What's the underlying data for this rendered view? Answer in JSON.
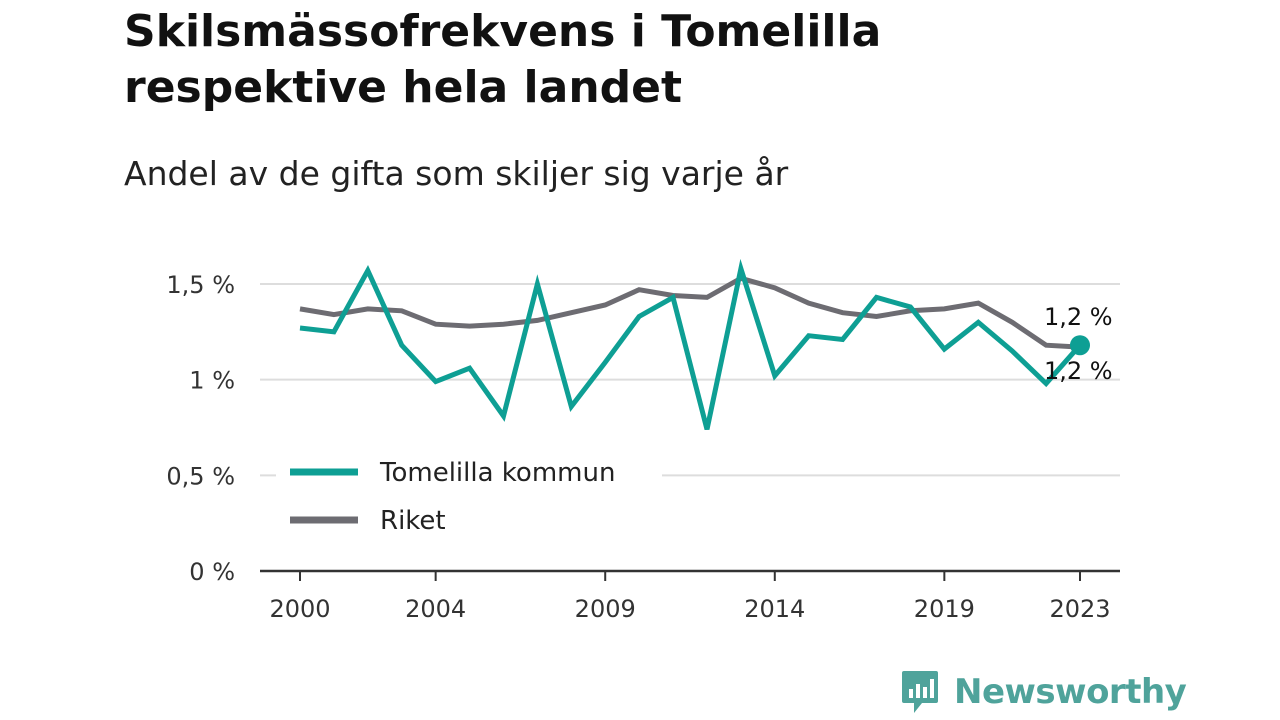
{
  "title": "Skilsmässofrekvens i Tomelilla respektive hela landet",
  "subtitle": "Andel av de gifta som skiljer sig varje år",
  "brand": "Newsworthy",
  "brand_icon": "bar-chart-speech-bubble-icon",
  "colors": {
    "tomelilla": "#0e9f94",
    "riket": "#6d6c72",
    "grid": "#dddddd",
    "axis": "#333333",
    "brand": "#4fa39b"
  },
  "chart_data": {
    "type": "line",
    "x": [
      2000,
      2001,
      2002,
      2003,
      2004,
      2005,
      2006,
      2007,
      2008,
      2009,
      2010,
      2011,
      2012,
      2013,
      2014,
      2015,
      2016,
      2017,
      2018,
      2019,
      2020,
      2021,
      2022,
      2023
    ],
    "series": [
      {
        "name": "Tomelilla kommun",
        "key": "tomelilla",
        "values": [
          1.27,
          1.25,
          1.57,
          1.18,
          0.99,
          1.06,
          0.81,
          1.5,
          0.86,
          1.09,
          1.33,
          1.43,
          0.74,
          1.58,
          1.02,
          1.23,
          1.21,
          1.43,
          1.38,
          1.16,
          1.3,
          1.15,
          0.98,
          1.18
        ]
      },
      {
        "name": "Riket",
        "key": "riket",
        "values": [
          1.37,
          1.34,
          1.37,
          1.36,
          1.29,
          1.28,
          1.29,
          1.31,
          1.35,
          1.39,
          1.47,
          1.44,
          1.43,
          1.53,
          1.48,
          1.4,
          1.35,
          1.33,
          1.36,
          1.37,
          1.4,
          1.3,
          1.18,
          1.17
        ]
      }
    ],
    "end_labels": [
      "1,2 %",
      "1,2 %"
    ],
    "xticks": [
      {
        "value": 2000,
        "label": "2000"
      },
      {
        "value": 2004,
        "label": "2004"
      },
      {
        "value": 2009,
        "label": "2009"
      },
      {
        "value": 2014,
        "label": "2014"
      },
      {
        "value": 2019,
        "label": "2019"
      },
      {
        "value": 2023,
        "label": "2023"
      }
    ],
    "yticks": [
      {
        "value": 0,
        "label": "0 %"
      },
      {
        "value": 0.5,
        "label": "0,5 %"
      },
      {
        "value": 1,
        "label": "1 %"
      },
      {
        "value": 1.5,
        "label": "1,5 %"
      }
    ],
    "ylim": [
      0,
      1.5
    ],
    "xlim": [
      2000,
      2023
    ],
    "grid": true,
    "legend_position": "bottom-left"
  }
}
